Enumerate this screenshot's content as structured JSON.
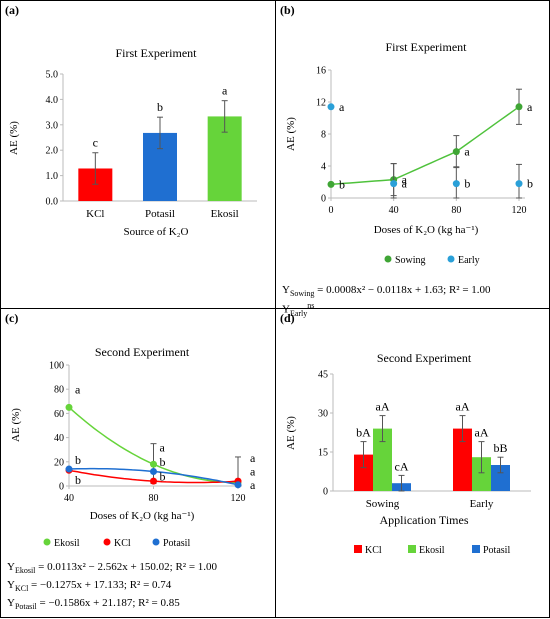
{
  "panels": {
    "a": {
      "label": "(a)"
    },
    "b": {
      "label": "(b)"
    },
    "c": {
      "label": "(c)"
    },
    "d": {
      "label": "(d)"
    }
  },
  "equations": {
    "b_sowing": {
      "lhs": "Y",
      "sub": "Sowing",
      "rhs": " = 0.0008x² − 0.0118x + 1.63; R² = 1.00"
    },
    "b_early": {
      "lhs": "Y",
      "sub": "Early",
      "sup": "ns"
    },
    "c_ekosil": {
      "lhs": "Y",
      "sub": "Ekosil",
      "rhs": " = 0.0113x² − 2.562x + 150.02; R² = 1.00"
    },
    "c_kcl": {
      "lhs": "Y",
      "sub": "KCl",
      "rhs": " = −0.1275x + 17.133; R² = 0.74"
    },
    "c_potasil": {
      "lhs": "Y",
      "sub": "Potasil",
      "rhs": " = −0.1586x + 21.187; R² = 0.85"
    }
  },
  "chart_data": [
    {
      "id": "a",
      "type": "bar",
      "title": "First Experiment",
      "xlabel": "Source of K₂O",
      "ylabel": "AE (%)",
      "ylim": [
        0,
        5
      ],
      "yticks": [
        "0.0",
        "1.0",
        "2.0",
        "3.0",
        "4.0",
        "5.0"
      ],
      "categories": [
        "KCl",
        "Potasil",
        "Ekosil"
      ],
      "values": [
        1.28,
        2.68,
        3.33
      ],
      "errors": [
        0.62,
        0.62,
        0.62
      ],
      "letters": [
        "c",
        "b",
        "a"
      ],
      "colors": [
        "#ff0000",
        "#1f6fd1",
        "#66d43a"
      ]
    },
    {
      "id": "b",
      "type": "scatter",
      "title": "First Experiment",
      "xlabel": "Doses of K₂O (kg ha⁻¹)",
      "ylabel": "AE (%)",
      "ylim": [
        0,
        16
      ],
      "yticks": [
        "0",
        "4",
        "8",
        "12",
        "16"
      ],
      "xlim": [
        0,
        120
      ],
      "xticks": [
        "0",
        "40",
        "80",
        "120"
      ],
      "series": [
        {
          "name": "Sowing",
          "color": "#3fa535",
          "x": [
            0,
            40,
            80,
            120
          ],
          "y": [
            1.7,
            2.3,
            5.8,
            11.4
          ],
          "errors": [
            0,
            2.0,
            2.0,
            2.2
          ],
          "letters": [
            "b",
            "a",
            "a",
            "a"
          ]
        },
        {
          "name": "Early",
          "color": "#2aa0d8",
          "x": [
            0,
            40,
            80,
            120
          ],
          "y": [
            11.4,
            1.8,
            1.8,
            1.8
          ],
          "errors": [
            0,
            2.5,
            2.1,
            2.4
          ],
          "letters": [
            "a",
            "a",
            "b",
            "b"
          ]
        }
      ],
      "legend_position": "bottom"
    },
    {
      "id": "c",
      "type": "scatter",
      "title": "Second Experiment",
      "xlabel": "Doses of K₂O (kg ha⁻¹)",
      "ylabel": "AE (%)",
      "ylim": [
        0,
        100
      ],
      "yticks": [
        "0",
        "20",
        "40",
        "60",
        "80",
        "100"
      ],
      "xlim": [
        40,
        120
      ],
      "xticks": [
        "40",
        "80",
        "120"
      ],
      "series": [
        {
          "name": "Ekosil",
          "color": "#66d43a",
          "x": [
            40,
            80,
            120
          ],
          "y": [
            65,
            18,
            3
          ],
          "letters": [
            "a",
            "a",
            "a"
          ]
        },
        {
          "name": "KCl",
          "color": "#ff0000",
          "x": [
            40,
            80,
            120
          ],
          "y": [
            13,
            4,
            4
          ],
          "letters": [
            "b",
            "b",
            "a"
          ]
        },
        {
          "name": "Potasil",
          "color": "#1f6fd1",
          "x": [
            40,
            80,
            120
          ],
          "y": [
            14,
            12,
            1
          ],
          "letters": [
            "b",
            "b",
            "a"
          ]
        }
      ],
      "error_bars": [
        {
          "x": 80,
          "low": 2,
          "high": 35
        },
        {
          "x": 120,
          "low": 0,
          "high": 24
        }
      ],
      "legend_position": "bottom"
    },
    {
      "id": "d",
      "type": "bar",
      "title": "Second Experiment",
      "xlabel": "Application Times",
      "ylabel": "AE (%)",
      "ylim": [
        0,
        45
      ],
      "yticks": [
        "0",
        "15",
        "30",
        "45"
      ],
      "categories": [
        "Sowing",
        "Early"
      ],
      "series": [
        {
          "name": "KCl",
          "color": "#ff0000",
          "values": [
            14,
            24
          ],
          "errors": [
            5,
            5
          ],
          "letters": [
            "bA",
            "aA"
          ]
        },
        {
          "name": "Ekosil",
          "color": "#66d43a",
          "values": [
            24,
            13
          ],
          "errors": [
            5,
            6
          ],
          "letters": [
            "aA",
            "aA"
          ]
        },
        {
          "name": "Potasil",
          "color": "#1f6fd1",
          "values": [
            3,
            10
          ],
          "errors": [
            3,
            3
          ],
          "letters": [
            "cA",
            "bB"
          ]
        }
      ],
      "legend_position": "bottom"
    }
  ]
}
